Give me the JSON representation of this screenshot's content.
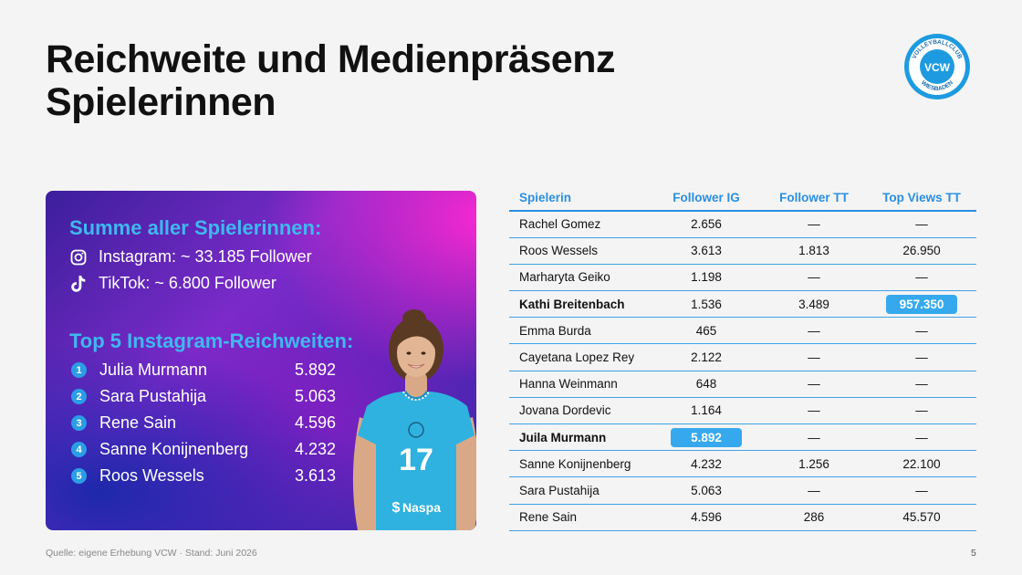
{
  "title": {
    "line1": "Reichweite und Medienpräsenz",
    "line2": "Spielerinnen"
  },
  "logo": {
    "top_text": "VOLLEYBALLCLUB",
    "center_text": "VCW",
    "bottom_text": "WIESBADEN"
  },
  "summary": {
    "heading": "Summe aller Spielerinnen:",
    "instagram": "Instagram: ~ 33.185 Follower",
    "tiktok": "TikTok: ~ 6.800 Follower"
  },
  "top5": {
    "heading": "Top 5 Instagram-Reichweiten:",
    "items": [
      {
        "rank": "1",
        "name": "Julia Murmann",
        "value": "5.892"
      },
      {
        "rank": "2",
        "name": "Sara Pustahija",
        "value": "5.063"
      },
      {
        "rank": "3",
        "name": "Rene Sain",
        "value": "4.596"
      },
      {
        "rank": "4",
        "name": "Sanne Konijnenberg",
        "value": "4.232"
      },
      {
        "rank": "5",
        "name": "Roos Wessels",
        "value": "3.613"
      }
    ]
  },
  "player_photo": {
    "jersey_number": "17",
    "sponsor": "Naspa"
  },
  "table": {
    "headers": [
      "Spielerin",
      "Follower IG",
      "Follower TT",
      "Top Views TT"
    ],
    "rows": [
      {
        "name": "Rachel Gomez",
        "ig": "2.656",
        "tt": "—",
        "views": "—"
      },
      {
        "name": "Roos Wessels",
        "ig": "3.613",
        "tt": "1.813",
        "views": "26.950"
      },
      {
        "name": "Marharyta Geiko",
        "ig": "1.198",
        "tt": "—",
        "views": "—"
      },
      {
        "name": "Kathi Breitenbach",
        "ig": "1.536",
        "tt": "3.489",
        "views": "957.350"
      },
      {
        "name": "Emma Burda",
        "ig": "465",
        "tt": "—",
        "views": "—"
      },
      {
        "name": "Cayetana Lopez Rey",
        "ig": "2.122",
        "tt": "—",
        "views": "—"
      },
      {
        "name": "Hanna Weinmann",
        "ig": "648",
        "tt": "—",
        "views": "—"
      },
      {
        "name": "Jovana Dordevic",
        "ig": "1.164",
        "tt": "—",
        "views": "—"
      },
      {
        "name": "Juila Murmann",
        "ig": "5.892",
        "tt": "—",
        "views": "—"
      },
      {
        "name": "Sanne Konijnenberg",
        "ig": "4.232",
        "tt": "1.256",
        "views": "22.100"
      },
      {
        "name": "Sara Pustahija",
        "ig": "5.063",
        "tt": "—",
        "views": "—"
      },
      {
        "name": "Rene Sain",
        "ig": "4.596",
        "tt": "286",
        "views": "45.570"
      }
    ]
  },
  "colors": {
    "accent": "#2a8fe0",
    "highlight": "#36a9ee",
    "heading_light_blue": "#3fb8ee"
  },
  "footer": {
    "source": "Quelle: eigene Erhebung VCW · Stand: Juni 2026",
    "page": "5"
  }
}
